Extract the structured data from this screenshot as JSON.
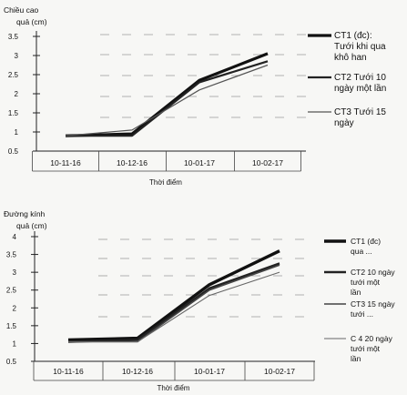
{
  "chart_data": [
    {
      "type": "line",
      "ylabel": "Chiều cao quả (cm)",
      "xlabel": "Thời điểm",
      "categories": [
        "10-11-16",
        "10-12-16",
        "10-01-17",
        "10-02-17"
      ],
      "yticks": [
        "3.5",
        "3",
        "2.5",
        "2",
        "1.5",
        "1",
        "0.5"
      ],
      "ylim": [
        0.5,
        3.5
      ],
      "series": [
        {
          "name": "CT1 (đc): Tưới khi qua khô han",
          "values": [
            0.9,
            0.95,
            2.35,
            3.05
          ]
        },
        {
          "name": "CT2  Tưới 10 ngày một lần",
          "values": [
            0.9,
            0.9,
            2.3,
            2.85
          ]
        },
        {
          "name": "CT3  Tưới 15 ngày",
          "values": [
            0.9,
            1.05,
            2.1,
            2.75
          ]
        }
      ],
      "legend": "right",
      "grid": true
    },
    {
      "type": "line",
      "ylabel": "Đường kính quả (cm)",
      "xlabel": "Thời điểm",
      "categories": [
        "10-11-16",
        "10-12-16",
        "10-01-17",
        "10-02-17"
      ],
      "yticks": [
        "4",
        "3.5",
        "3",
        "2.5",
        "2",
        "1.5",
        "1",
        "0.5"
      ],
      "ylim": [
        0.5,
        4
      ],
      "series": [
        {
          "name": "CT1 (đc) qua ...",
          "values": [
            1.1,
            1.15,
            2.65,
            3.6
          ]
        },
        {
          "name": "CT2  10 ngày tưới một lần",
          "values": [
            1.05,
            1.1,
            2.55,
            3.25
          ]
        },
        {
          "name": "CT3  15 ngày tưới ...",
          "values": [
            1.05,
            1.05,
            2.5,
            3.2
          ]
        },
        {
          "name": "C 4 20 ngày tưới một lần",
          "values": [
            1.05,
            1.05,
            2.35,
            3.0
          ]
        }
      ],
      "legend": "right",
      "grid": true
    }
  ]
}
